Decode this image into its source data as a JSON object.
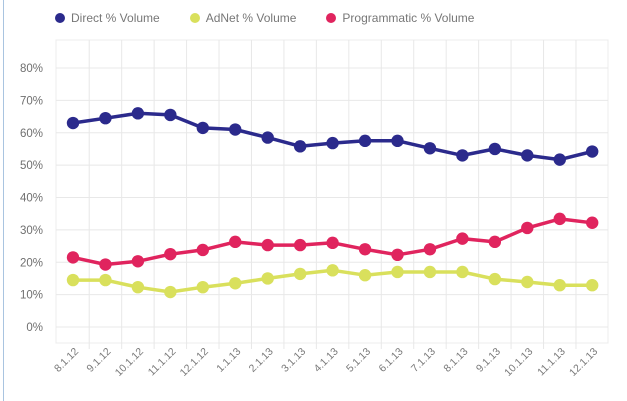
{
  "chart_data": {
    "type": "line",
    "title": "",
    "xlabel": "",
    "ylabel": "",
    "x": [
      "8.1.12",
      "9.1.12",
      "10.1.12",
      "11.1.12",
      "12.1.12",
      "1.1.13",
      "2.1.13",
      "3.1.13",
      "4.1.13",
      "5.1.13",
      "6.1.13",
      "7.1.13",
      "8.1.13",
      "9.1.13",
      "10.1.13",
      "11.1.13",
      "12.1.13"
    ],
    "yticks": [
      "0%",
      "10%",
      "20%",
      "30%",
      "40%",
      "50%",
      "60%",
      "70%",
      "80%"
    ],
    "ylim": [
      0,
      80
    ],
    "grid": true,
    "legend_position": "top-left",
    "series": [
      {
        "name": "Direct % Volume",
        "color": "#2b2a8c",
        "values": [
          63,
          64.5,
          66,
          65.5,
          61.5,
          61,
          58.5,
          55.8,
          56.8,
          57.5,
          57.5,
          55.2,
          53,
          55,
          53,
          51.7,
          54.2
        ]
      },
      {
        "name": "AdNet % Volume",
        "color": "#d9e05c",
        "values": [
          14.5,
          14.5,
          12.3,
          10.8,
          12.3,
          13.5,
          15,
          16.4,
          17.5,
          16,
          17,
          17,
          17,
          14.8,
          13.9,
          12.9,
          12.9
        ]
      },
      {
        "name": "Programmatic % Volume",
        "color": "#e0245e",
        "values": [
          21.5,
          19.3,
          20.3,
          22.5,
          23.8,
          26.3,
          25.3,
          25.3,
          26,
          24,
          22.3,
          24,
          27.3,
          26.3,
          30.6,
          33.4,
          32.2
        ]
      }
    ]
  }
}
